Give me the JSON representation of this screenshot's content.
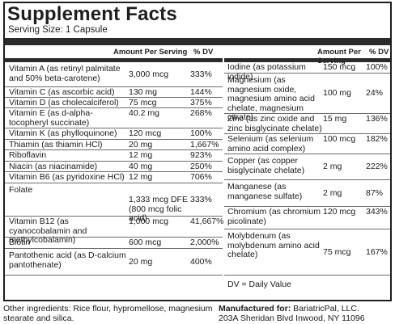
{
  "title": "Supplement Facts",
  "serving_size": "Serving Size: 1 Capsule",
  "header": {
    "amount": "Amount Per Serving",
    "dv": "% DV"
  },
  "left_rows": [
    {
      "name": "Vitamin A (as retinyl palmitate and 50% beta-carotene)",
      "amount": "3,000 mcg",
      "dv": "333%"
    },
    {
      "name": "Vitamin C (as ascorbic acid)",
      "amount": "130 mg",
      "dv": "144%"
    },
    {
      "name": "Vitamin D (as cholecalciferol)",
      "amount": "75 mcg",
      "dv": "375%"
    },
    {
      "name": "Vitamin E (as d-alpha-tocopheryl succinate)",
      "amount": "40.2 mg",
      "dv": "268%"
    },
    {
      "name": "Vitamin K (as phylloquinone)",
      "amount": "120 mcg",
      "dv": "100%"
    },
    {
      "name": "Thiamin (as thiamin HCl)",
      "amount": "20 mg",
      "dv": "1,667%"
    },
    {
      "name": "Riboflavin",
      "amount": "12 mg",
      "dv": "923%"
    },
    {
      "name": "Niacin (as niacinamide)",
      "amount": "40 mg",
      "dv": "250%"
    },
    {
      "name": "Vitamin B6 (as pyridoxine HCl)",
      "amount": "12 mg",
      "dv": "706%"
    },
    {
      "name": "Folate",
      "amount": "1,333 mcg DFE (800 mcg folic acid)",
      "dv": "333%"
    },
    {
      "name": "Vitamin B12 (as cyanocobalamin and methylcobalamin)",
      "amount": "1,000 mcg",
      "dv": "41,667%"
    },
    {
      "name": "Biotin",
      "amount": "600 mcg",
      "dv": "2,000%"
    },
    {
      "name": "Pantothenic acid (as D-calcium pantothenate)",
      "amount": "20 mg",
      "dv": "400%"
    }
  ],
  "right_rows": [
    {
      "name": "Iodine (as potassium iodide)",
      "amount": "150 mcg",
      "dv": "100%"
    },
    {
      "name": "Magnesium (as magnesium oxide, magnesium amino acid chelate, magnesium citrate)",
      "amount": "100 mg",
      "dv": "24%"
    },
    {
      "name": "Zinc (as zinc oxide and zinc bisglycinate chelate)",
      "amount": "15 mg",
      "dv": "136%"
    },
    {
      "name": "Selenium (as selenium amino acid complex)",
      "amount": "100 mcg",
      "dv": "182%"
    },
    {
      "name": "Copper (as copper bisglycinate chelate)",
      "amount": "2 mg",
      "dv": "222%"
    },
    {
      "name": "Manganese (as manganese sulfate)",
      "amount": "2 mg",
      "dv": "87%"
    },
    {
      "name": "Chromium (as chromium picolinate)",
      "amount": "120 mcg",
      "dv": "343%"
    },
    {
      "name": "Molybdenum (as molybdenum amino acid chelate)",
      "amount": "75 mcg",
      "dv": "167%"
    }
  ],
  "dv_note": "DV = Daily Value",
  "other_ingredients": "Other ingredients: Rice flour, hypromellose, magnesium stearate and silica.",
  "manufacturer": {
    "label": "Manufactured for:",
    "name": "BariatricPal, LLC.",
    "address": "203A Sheridan Blvd  Inwood, NY 11096"
  }
}
